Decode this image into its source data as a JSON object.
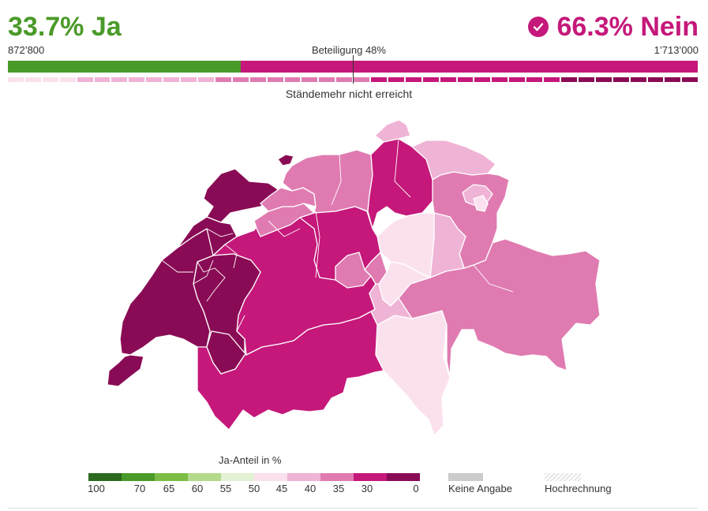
{
  "result": {
    "ja_percent_label": "33.7% Ja",
    "nein_percent_label": "66.3% Nein",
    "ja_count": "872’800",
    "nein_count": "1’713’000",
    "turnout_label": "Beteiligung 48%",
    "ja_share": 0.337,
    "staendemehr_label": "Ständemehr nicht erreicht",
    "winner_icon": "check-circle-icon"
  },
  "colors": {
    "ja": "#4a9a29",
    "nein": "#c5187a",
    "scale": [
      "#2b6a1f",
      "#4a9a29",
      "#7cbd46",
      "#b2da8a",
      "#e3f2d4",
      "#fbe1ee",
      "#efb3d5",
      "#e07bb1",
      "#c5187a",
      "#8a0b55"
    ],
    "no_data": "#cccccc"
  },
  "canton_bar": [
    "#fbe1ee",
    "#fbe1ee",
    "#fbe1ee",
    "#fbe1ee",
    "#efb3d5",
    "#efb3d5",
    "#efb3d5",
    "#efb3d5",
    "#efb3d5",
    "#efb3d5",
    "#efb3d5",
    "#efb3d5",
    "#e07bb1",
    "#e07bb1",
    "#e07bb1",
    "#e07bb1",
    "#e07bb1",
    "#e07bb1",
    "#e07bb1",
    "#e07bb1",
    "#e07bb1",
    "#c5187a",
    "#c5187a",
    "#c5187a",
    "#c5187a",
    "#c5187a",
    "#c5187a",
    "#c5187a",
    "#c5187a",
    "#c5187a",
    "#c5187a",
    "#c5187a",
    "#8a0b55",
    "#8a0b55",
    "#8a0b55",
    "#8a0b55",
    "#8a0b55",
    "#8a0b55",
    "#8a0b55",
    "#8a0b55"
  ],
  "legend": {
    "title": "Ja-Anteil in %",
    "ticks": [
      "100",
      "70",
      "65",
      "60",
      "55",
      "50",
      "45",
      "40",
      "35",
      "30",
      "0"
    ],
    "no_data_label": "Keine Angabe",
    "projection_label": "Hochrechnung"
  },
  "map_regions": [
    {
      "name": "jura",
      "fill": "#8a0b55"
    },
    {
      "name": "vaud-west",
      "fill": "#8a0b55"
    },
    {
      "name": "vaud-east",
      "fill": "#8a0b55"
    },
    {
      "name": "geneva",
      "fill": "#8a0b55"
    },
    {
      "name": "neuchatel",
      "fill": "#8a0b55"
    },
    {
      "name": "fribourg",
      "fill": "#8a0b55"
    },
    {
      "name": "bern",
      "fill": "#c5187a"
    },
    {
      "name": "valais",
      "fill": "#c5187a"
    },
    {
      "name": "basel-land",
      "fill": "#e07bb1"
    },
    {
      "name": "basel-stadt",
      "fill": "#8a0b55"
    },
    {
      "name": "solothurn",
      "fill": "#e07bb1"
    },
    {
      "name": "aargau",
      "fill": "#e07bb1"
    },
    {
      "name": "zurich",
      "fill": "#c5187a"
    },
    {
      "name": "lucerne",
      "fill": "#c5187a"
    },
    {
      "name": "obwalden",
      "fill": "#e07bb1"
    },
    {
      "name": "nidwalden",
      "fill": "#e07bb1"
    },
    {
      "name": "zug",
      "fill": "#fbe1ee"
    },
    {
      "name": "schwyz",
      "fill": "#fbe1ee"
    },
    {
      "name": "uri",
      "fill": "#efb3d5"
    },
    {
      "name": "glarus",
      "fill": "#efb3d5"
    },
    {
      "name": "schaffhausen",
      "fill": "#efb3d5"
    },
    {
      "name": "thurgau",
      "fill": "#efb3d5"
    },
    {
      "name": "st-gallen",
      "fill": "#e07bb1"
    },
    {
      "name": "appenzell-ar",
      "fill": "#efb3d5"
    },
    {
      "name": "appenzell-ir",
      "fill": "#fbe1ee"
    },
    {
      "name": "graubuenden",
      "fill": "#e07bb1"
    },
    {
      "name": "ticino",
      "fill": "#fbe1ee"
    }
  ]
}
